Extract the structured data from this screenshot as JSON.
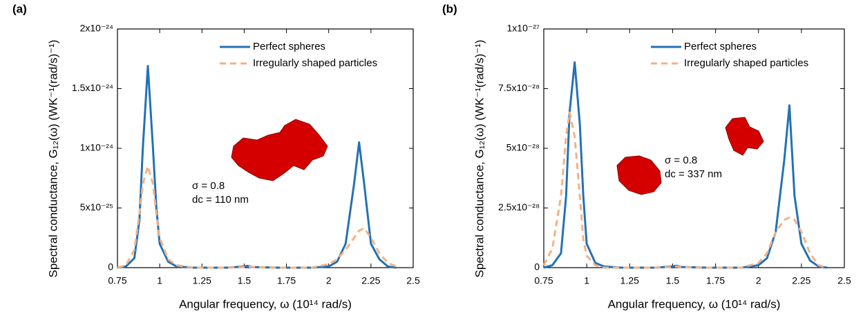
{
  "chart_data": [
    {
      "type": "line",
      "panel_label": "(a)",
      "x_label": "Angular frequency, ω (10¹⁴ rad/s)",
      "y_label": "Spectral conductance, G₁₂(ω) (WK⁻¹(rad/s)⁻¹)",
      "x": [
        0.75,
        0.8,
        0.85,
        0.88,
        0.9,
        0.93,
        0.96,
        0.98,
        1.0,
        1.05,
        1.1,
        1.2,
        1.4,
        1.5,
        1.52,
        1.55,
        1.7,
        1.9,
        2.0,
        2.05,
        2.1,
        2.15,
        2.18,
        2.21,
        2.25,
        2.3,
        2.35,
        2.4
      ],
      "series": [
        {
          "name": "Perfect spheres",
          "color": "#2371b5",
          "dash": false,
          "values": [
            0,
            1e-26,
            8e-26,
            4e-25,
            1e-24,
            1.69e-24,
            1e-24,
            5e-25,
            2e-25,
            5e-26,
            1e-26,
            0,
            0,
            1e-26,
            1.5e-26,
            5e-27,
            0,
            0,
            1e-26,
            5e-26,
            2e-25,
            7e-25,
            1.05e-24,
            7e-25,
            2e-25,
            7e-26,
            1e-26,
            0
          ]
        },
        {
          "name": "Irregularly shaped particles",
          "color": "#f4b183",
          "dash": true,
          "values": [
            0,
            2e-26,
            1.5e-25,
            4.5e-25,
            7e-25,
            8.5e-25,
            7e-25,
            4.5e-25,
            2.5e-25,
            7e-26,
            2e-26,
            0,
            0,
            5e-27,
            1e-26,
            5e-27,
            0,
            0,
            3e-26,
            7e-26,
            1.5e-25,
            2.5e-25,
            3.1e-25,
            3.3e-25,
            2.5e-25,
            1.2e-25,
            4e-26,
            1e-26
          ]
        }
      ],
      "xlim": [
        0.75,
        2.5
      ],
      "xticks": [
        0.75,
        1,
        1.25,
        1.5,
        1.75,
        2,
        2.25,
        2.5
      ],
      "ylim": [
        0,
        2e-24
      ],
      "yticks": [
        0,
        {
          "value": 5e-25,
          "label": "5x10⁻²⁵"
        },
        {
          "value": 1e-24,
          "label": "1x10⁻²⁴"
        },
        {
          "value": 1.5e-24,
          "label": "1.5x10⁻²⁴"
        },
        {
          "value": 2e-24,
          "label": "2x10⁻²⁴"
        }
      ],
      "legend": "upper right",
      "annotations": [
        "σ = 0.8",
        "dc = 110 nm"
      ]
    },
    {
      "type": "line",
      "panel_label": "(b)",
      "x_label": "Angular frequency, ω (10¹⁴ rad/s)",
      "y_label": "Spectral conductance, G₁₂(ω) (WK⁻¹(rad/s)⁻¹)",
      "x": [
        0.75,
        0.8,
        0.85,
        0.88,
        0.9,
        0.93,
        0.96,
        0.98,
        1.0,
        1.05,
        1.1,
        1.2,
        1.4,
        1.5,
        1.52,
        1.55,
        1.7,
        1.9,
        2.0,
        2.05,
        2.1,
        2.15,
        2.18,
        2.21,
        2.25,
        2.3,
        2.35,
        2.4
      ],
      "series": [
        {
          "name": "Perfect spheres",
          "color": "#2371b5",
          "dash": false,
          "values": [
            0,
            1e-29,
            6e-29,
            3e-28,
            6.5e-28,
            8.6e-28,
            6e-28,
            3e-28,
            1e-28,
            2e-29,
            5e-30,
            0,
            0,
            5e-30,
            8e-30,
            3e-30,
            0,
            0,
            1e-29,
            4e-29,
            1.5e-28,
            4.5e-28,
            6.8e-28,
            3e-28,
            1e-28,
            3e-29,
            5e-30,
            0
          ]
        },
        {
          "name": "Irregularly shaped particles",
          "color": "#f4b183",
          "dash": true,
          "values": [
            1e-29,
            8e-29,
            3e-28,
            5.5e-28,
            6.5e-28,
            5.5e-28,
            3e-28,
            1.2e-28,
            5e-29,
            1e-29,
            0,
            0,
            0,
            3e-30,
            5e-30,
            2e-30,
            0,
            0,
            2e-29,
            6e-29,
            1.5e-28,
            2e-28,
            2.1e-28,
            2e-28,
            1.5e-28,
            6e-29,
            1e-29,
            0
          ]
        }
      ],
      "xlim": [
        0.75,
        2.5
      ],
      "xticks": [
        0.75,
        1,
        1.25,
        1.5,
        1.75,
        2,
        2.25,
        2.5
      ],
      "ylim": [
        0,
        1e-27
      ],
      "yticks": [
        0,
        {
          "value": 2.5e-28,
          "label": "2.5x10⁻²⁸"
        },
        {
          "value": 5e-28,
          "label": "5x10⁻²⁸"
        },
        {
          "value": 7.5e-28,
          "label": "7.5x10⁻²⁸"
        },
        {
          "value": 1e-27,
          "label": "1x10⁻²⁷"
        }
      ],
      "legend": "upper right",
      "annotations": [
        "σ = 0.8",
        "dc = 337 nm"
      ]
    }
  ]
}
